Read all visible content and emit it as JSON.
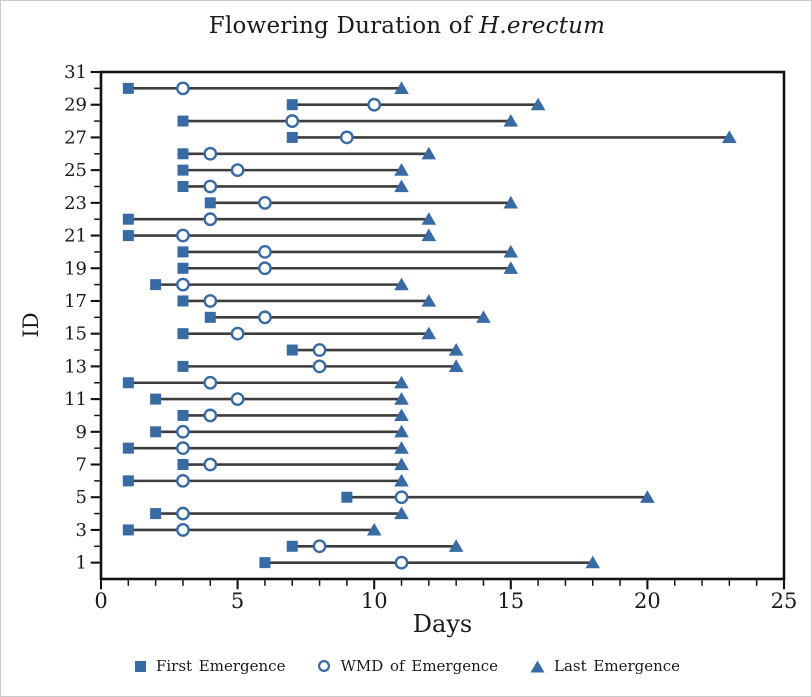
{
  "chart_data": {
    "type": "scatter",
    "title_prefix": "Flowering Duration of ",
    "title_species": "H.erectum",
    "xlabel": "Days",
    "ylabel": "ID",
    "xlim": [
      0,
      25
    ],
    "ylim": [
      0,
      31
    ],
    "x_major_ticks": [
      0,
      5,
      10,
      15,
      20,
      25
    ],
    "x_minor_step": 1,
    "y_axis_labels": [
      1,
      3,
      5,
      7,
      9,
      11,
      13,
      15,
      17,
      19,
      21,
      23,
      25,
      27,
      29,
      31
    ],
    "y_minor_step": 1,
    "grid": false,
    "legend_position": "bottom",
    "legend": [
      "First Emergence",
      "WMD of  Emergence",
      "Last  Emergence"
    ],
    "marker_color": "#386AA4",
    "line_color": "#3D3D3D",
    "axis_color": "#111111",
    "text_color": "#1A1A1A",
    "rows": [
      {
        "id": 1,
        "first": 6,
        "wmd": 11,
        "last": 18
      },
      {
        "id": 2,
        "first": 7,
        "wmd": 8,
        "last": 13
      },
      {
        "id": 3,
        "first": 1,
        "wmd": 3,
        "last": 10
      },
      {
        "id": 4,
        "first": 2,
        "wmd": 3,
        "last": 11
      },
      {
        "id": 5,
        "first": 9,
        "wmd": 11,
        "last": 20
      },
      {
        "id": 6,
        "first": 1,
        "wmd": 3,
        "last": 11
      },
      {
        "id": 7,
        "first": 3,
        "wmd": 4,
        "last": 11
      },
      {
        "id": 8,
        "first": 1,
        "wmd": 3,
        "last": 11
      },
      {
        "id": 9,
        "first": 2,
        "wmd": 3,
        "last": 11
      },
      {
        "id": 10,
        "first": 3,
        "wmd": 4,
        "last": 11
      },
      {
        "id": 11,
        "first": 2,
        "wmd": 5,
        "last": 11
      },
      {
        "id": 12,
        "first": 1,
        "wmd": 4,
        "last": 11
      },
      {
        "id": 13,
        "first": 3,
        "wmd": 8,
        "last": 13
      },
      {
        "id": 14,
        "first": 7,
        "wmd": 8,
        "last": 13
      },
      {
        "id": 15,
        "first": 3,
        "wmd": 5,
        "last": 12
      },
      {
        "id": 16,
        "first": 4,
        "wmd": 6,
        "last": 14
      },
      {
        "id": 17,
        "first": 3,
        "wmd": 4,
        "last": 12
      },
      {
        "id": 18,
        "first": 2,
        "wmd": 3,
        "last": 11
      },
      {
        "id": 19,
        "first": 3,
        "wmd": 6,
        "last": 15
      },
      {
        "id": 20,
        "first": 3,
        "wmd": 6,
        "last": 15
      },
      {
        "id": 21,
        "first": 1,
        "wmd": 3,
        "last": 12
      },
      {
        "id": 22,
        "first": 1,
        "wmd": 4,
        "last": 12
      },
      {
        "id": 23,
        "first": 4,
        "wmd": 6,
        "last": 15
      },
      {
        "id": 24,
        "first": 3,
        "wmd": 4,
        "last": 11
      },
      {
        "id": 25,
        "first": 3,
        "wmd": 5,
        "last": 11
      },
      {
        "id": 26,
        "first": 3,
        "wmd": 4,
        "last": 12
      },
      {
        "id": 27,
        "first": 7,
        "wmd": 9,
        "last": 23
      },
      {
        "id": 28,
        "first": 3,
        "wmd": 7,
        "last": 15
      },
      {
        "id": 29,
        "first": 7,
        "wmd": 10,
        "last": 16
      },
      {
        "id": 30,
        "first": 1,
        "wmd": 3,
        "last": 11
      }
    ]
  }
}
